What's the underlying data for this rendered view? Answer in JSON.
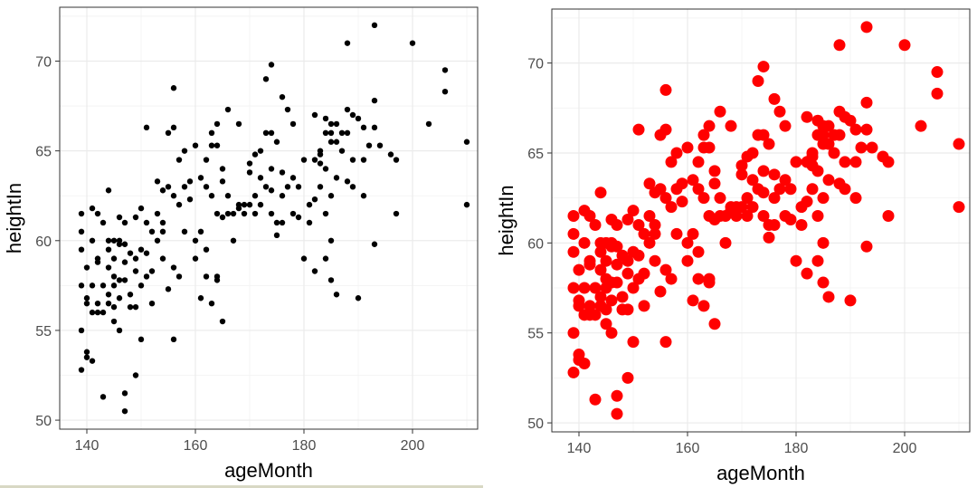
{
  "chart_data": [
    {
      "type": "scatter",
      "xlabel": "ageMonth",
      "ylabel": "heightIn",
      "xlim": [
        135,
        212
      ],
      "ylim": [
        49.5,
        73
      ],
      "xticks": [
        "140",
        "160",
        "180",
        "200"
      ],
      "yticks": [
        "50",
        "55",
        "60",
        "65",
        "70"
      ],
      "grid": true,
      "point_color": "#000000",
      "point_size": "small",
      "points": [
        [
          139,
          61.5
        ],
        [
          139,
          60.5
        ],
        [
          139,
          59.5
        ],
        [
          139,
          57.5
        ],
        [
          139,
          55
        ],
        [
          139,
          52.8
        ],
        [
          140,
          58.5
        ],
        [
          140,
          56.8
        ],
        [
          140,
          56.5
        ],
        [
          140,
          53.8
        ],
        [
          140,
          53.5
        ],
        [
          141,
          61.8
        ],
        [
          141,
          60
        ],
        [
          141,
          57.5
        ],
        [
          141,
          56
        ],
        [
          141,
          53.3
        ],
        [
          142,
          61.5
        ],
        [
          142,
          59
        ],
        [
          142,
          58.8
        ],
        [
          142,
          56.5
        ],
        [
          142,
          56
        ],
        [
          143,
          61
        ],
        [
          143,
          57.5
        ],
        [
          143,
          56
        ],
        [
          143,
          51.3
        ],
        [
          144,
          62.8
        ],
        [
          144,
          60
        ],
        [
          144,
          59.5
        ],
        [
          144,
          58.5
        ],
        [
          144,
          57
        ],
        [
          144,
          56.5
        ],
        [
          145,
          60
        ],
        [
          145,
          59
        ],
        [
          145,
          58
        ],
        [
          145,
          57.5
        ],
        [
          145,
          56.3
        ],
        [
          145,
          55.5
        ],
        [
          146,
          61.3
        ],
        [
          146,
          60
        ],
        [
          146,
          59.8
        ],
        [
          146,
          57.8
        ],
        [
          146,
          56.8
        ],
        [
          146,
          55
        ],
        [
          147,
          61
        ],
        [
          147,
          59.8
        ],
        [
          147,
          58.8
        ],
        [
          147,
          57.8
        ],
        [
          147,
          51.5
        ],
        [
          147,
          50.5
        ],
        [
          148,
          59.3
        ],
        [
          148,
          57
        ],
        [
          148,
          56.3
        ],
        [
          149,
          61.3
        ],
        [
          149,
          59
        ],
        [
          149,
          58.3
        ],
        [
          149,
          56.3
        ],
        [
          149,
          52.5
        ],
        [
          150,
          61.8
        ],
        [
          150,
          59.5
        ],
        [
          150,
          57.5
        ],
        [
          150,
          54.5
        ],
        [
          151,
          61
        ],
        [
          151,
          59.3
        ],
        [
          151,
          58
        ],
        [
          151,
          66.3
        ],
        [
          152,
          60.5
        ],
        [
          152,
          58.3
        ],
        [
          152,
          56.5
        ],
        [
          153,
          63.3
        ],
        [
          153,
          61.5
        ],
        [
          153,
          60
        ],
        [
          154,
          62.8
        ],
        [
          154,
          61
        ],
        [
          154,
          60.5
        ],
        [
          154,
          59
        ],
        [
          155,
          66
        ],
        [
          155,
          63
        ],
        [
          155,
          57.3
        ],
        [
          156,
          68.5
        ],
        [
          156,
          66.3
        ],
        [
          156,
          62.5
        ],
        [
          156,
          58.5
        ],
        [
          156,
          54.5
        ],
        [
          157,
          64.5
        ],
        [
          157,
          62
        ],
        [
          157,
          58
        ],
        [
          158,
          65
        ],
        [
          158,
          63
        ],
        [
          158,
          60.5
        ],
        [
          159,
          63.3
        ],
        [
          159,
          62.3
        ],
        [
          160,
          65.3
        ],
        [
          160,
          60
        ],
        [
          160,
          59
        ],
        [
          161,
          63.5
        ],
        [
          161,
          60.5
        ],
        [
          161,
          56.8
        ],
        [
          162,
          64.5
        ],
        [
          162,
          63
        ],
        [
          162,
          59.5
        ],
        [
          162,
          58
        ],
        [
          163,
          66
        ],
        [
          163,
          65.3
        ],
        [
          163,
          62.5
        ],
        [
          163,
          56.5
        ],
        [
          164,
          66.5
        ],
        [
          164,
          65.3
        ],
        [
          164,
          61.5
        ],
        [
          164,
          58
        ],
        [
          164,
          57.8
        ],
        [
          165,
          64
        ],
        [
          165,
          63.3
        ],
        [
          165,
          61.3
        ],
        [
          165,
          55.5
        ],
        [
          166,
          67.3
        ],
        [
          166,
          62.5
        ],
        [
          166,
          61.5
        ],
        [
          167,
          61.5
        ],
        [
          167,
          60
        ],
        [
          168,
          66.5
        ],
        [
          168,
          62
        ],
        [
          168,
          61.8
        ],
        [
          169,
          62
        ],
        [
          169,
          61.5
        ],
        [
          170,
          64.3
        ],
        [
          170,
          63.8
        ],
        [
          170,
          62
        ],
        [
          171,
          64.8
        ],
        [
          171,
          62.5
        ],
        [
          171,
          61.5
        ],
        [
          172,
          65
        ],
        [
          172,
          63.5
        ],
        [
          172,
          62
        ],
        [
          173,
          69
        ],
        [
          173,
          66
        ],
        [
          173,
          63
        ],
        [
          174,
          69.8
        ],
        [
          174,
          66
        ],
        [
          174,
          64
        ],
        [
          174,
          62.8
        ],
        [
          174,
          61.5
        ],
        [
          175,
          65.5
        ],
        [
          175,
          61
        ],
        [
          175,
          60.3
        ],
        [
          176,
          68
        ],
        [
          176,
          63.8
        ],
        [
          176,
          62.5
        ],
        [
          176,
          61
        ],
        [
          177,
          67.3
        ],
        [
          177,
          63
        ],
        [
          178,
          66.5
        ],
        [
          178,
          63.5
        ],
        [
          178,
          61.5
        ],
        [
          179,
          63
        ],
        [
          179,
          61.3
        ],
        [
          180,
          64.5
        ],
        [
          180,
          59
        ],
        [
          181,
          62
        ],
        [
          181,
          61
        ],
        [
          182,
          67
        ],
        [
          182,
          64.5
        ],
        [
          182,
          62.3
        ],
        [
          182,
          58.3
        ],
        [
          183,
          65
        ],
        [
          183,
          64.8
        ],
        [
          183,
          64.3
        ],
        [
          183,
          63
        ],
        [
          184,
          66.8
        ],
        [
          184,
          66
        ],
        [
          184,
          64
        ],
        [
          184,
          61.5
        ],
        [
          184,
          59
        ],
        [
          185,
          66.5
        ],
        [
          185,
          66
        ],
        [
          185,
          65.5
        ],
        [
          185,
          62.5
        ],
        [
          185,
          60
        ],
        [
          185,
          57.8
        ],
        [
          186,
          66.5
        ],
        [
          186,
          65.5
        ],
        [
          186,
          63.5
        ],
        [
          186,
          57
        ],
        [
          187,
          66
        ],
        [
          187,
          65
        ],
        [
          188,
          71
        ],
        [
          188,
          67.3
        ],
        [
          188,
          66
        ],
        [
          188,
          63.3
        ],
        [
          189,
          67
        ],
        [
          189,
          64.5
        ],
        [
          189,
          63
        ],
        [
          190,
          66.8
        ],
        [
          190,
          56.8
        ],
        [
          191,
          66.3
        ],
        [
          191,
          64.5
        ],
        [
          191,
          62.5
        ],
        [
          192,
          65.3
        ],
        [
          193,
          72
        ],
        [
          193,
          67.8
        ],
        [
          193,
          66.3
        ],
        [
          193,
          59.8
        ],
        [
          194,
          65.3
        ],
        [
          196,
          64.8
        ],
        [
          197,
          64.5
        ],
        [
          197,
          61.5
        ],
        [
          200,
          71
        ],
        [
          203,
          66.5
        ],
        [
          206,
          69.5
        ],
        [
          206,
          68.3
        ],
        [
          210,
          65.5
        ],
        [
          210,
          62
        ]
      ]
    },
    {
      "type": "scatter",
      "xlabel": "ageMonth",
      "ylabel": "heightIn",
      "xlim": [
        135,
        212
      ],
      "ylim": [
        49.5,
        73
      ],
      "xticks": [
        "140",
        "160",
        "180",
        "200"
      ],
      "yticks": [
        "50",
        "55",
        "60",
        "65",
        "70"
      ],
      "grid": true,
      "point_color": "#ff0000",
      "point_size": "large",
      "points": "same as left panel"
    }
  ]
}
